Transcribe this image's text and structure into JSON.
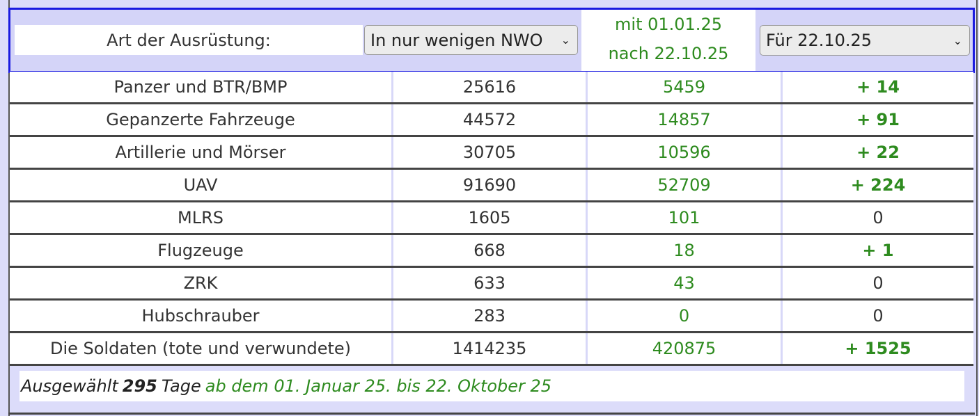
{
  "header": {
    "label": "Art der Ausrüstung:",
    "select1": "In nur wenigen NWO",
    "range_line1": "mit 01.01.25",
    "range_line2": "nach 22.10.25",
    "select2": "Für 22.10.25"
  },
  "rows": [
    {
      "name": "Panzer und BTR/BMP",
      "total": "25616",
      "period": "5459",
      "day": "+ 14"
    },
    {
      "name": "Gepanzerte Fahrzeuge",
      "total": "44572",
      "period": "14857",
      "day": "+ 91"
    },
    {
      "name": "Artillerie und Mörser",
      "total": "30705",
      "period": "10596",
      "day": "+ 22"
    },
    {
      "name": "UAV",
      "total": "91690",
      "period": "52709",
      "day": "+ 224"
    },
    {
      "name": "MLRS",
      "total": "1605",
      "period": "101",
      "day": "0"
    },
    {
      "name": "Flugzeuge",
      "total": "668",
      "period": "18",
      "day": "+ 1"
    },
    {
      "name": "ZRK",
      "total": "633",
      "period": "43",
      "day": "0"
    },
    {
      "name": "Hubschrauber",
      "total": "283",
      "period": "0",
      "day": "0"
    },
    {
      "name": "Die Soldaten (tote und verwundete)",
      "total": "1414235",
      "period": "420875",
      "day": "+ 1525"
    }
  ],
  "footer": {
    "prefix": "Ausgewählt",
    "days": "295",
    "suffix": "Tage",
    "range": "ab dem 01. Januar 25. bis 22. Oktober 25"
  },
  "colors": {
    "accent_green": "#2e8b1f",
    "header_border": "#1a1ae0",
    "background": "#dcdcfa"
  }
}
